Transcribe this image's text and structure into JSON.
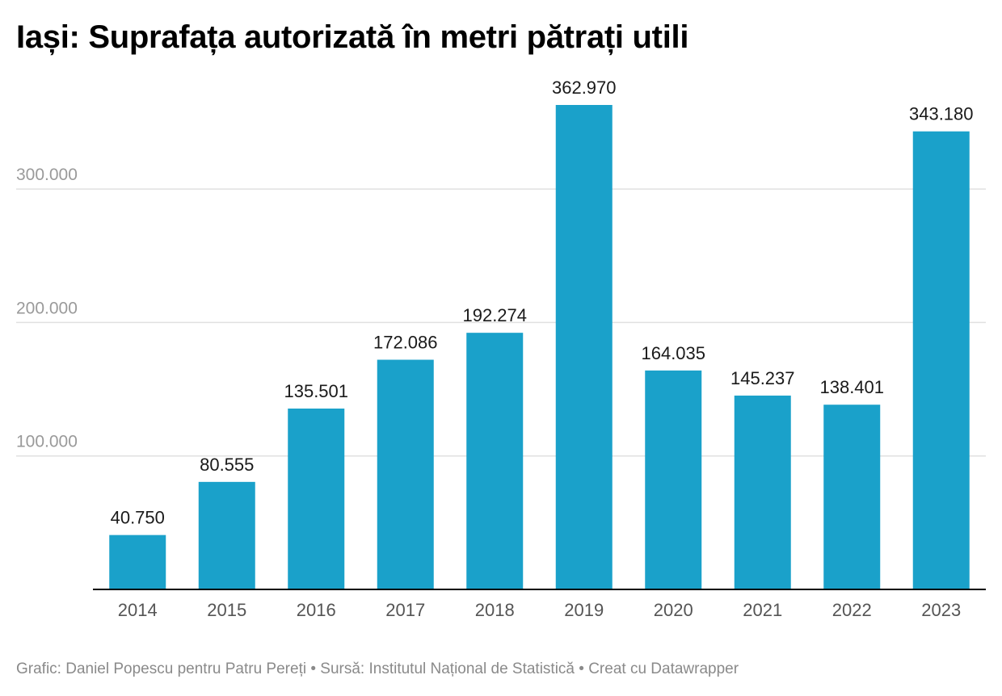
{
  "title": "Iași: Suprafața autorizată în metri pătrați utili",
  "footer": "Grafic: Daniel Popescu pentru Patru Pereți • Sursă: Institutul Național de Statistică • Creat cu Datawrapper",
  "colors": {
    "bar": "#1aa1ca",
    "grid": "#e0e0e0",
    "axis_text": "#9a9a9a",
    "x_tick_text": "#555555",
    "value_label": "#1a1a1a",
    "baseline": "#000000"
  },
  "chart_data": {
    "type": "bar",
    "categories": [
      "2014",
      "2015",
      "2016",
      "2017",
      "2018",
      "2019",
      "2020",
      "2021",
      "2022",
      "2023"
    ],
    "values": [
      40750,
      80555,
      135501,
      172086,
      192274,
      362970,
      164035,
      145237,
      138401,
      343180
    ],
    "value_labels": [
      "40.750",
      "80.555",
      "135.501",
      "172.086",
      "192.274",
      "362.970",
      "164.035",
      "145.237",
      "138.401",
      "343.180"
    ],
    "y_ticks": [
      100000,
      200000,
      300000
    ],
    "y_tick_labels": [
      "100.000",
      "200.000",
      "300.000"
    ],
    "title": "Iași: Suprafața autorizată în metri pătrați utili",
    "xlabel": "",
    "ylabel": "",
    "ylim": [
      0,
      362970
    ],
    "grid": true,
    "legend": "none"
  }
}
